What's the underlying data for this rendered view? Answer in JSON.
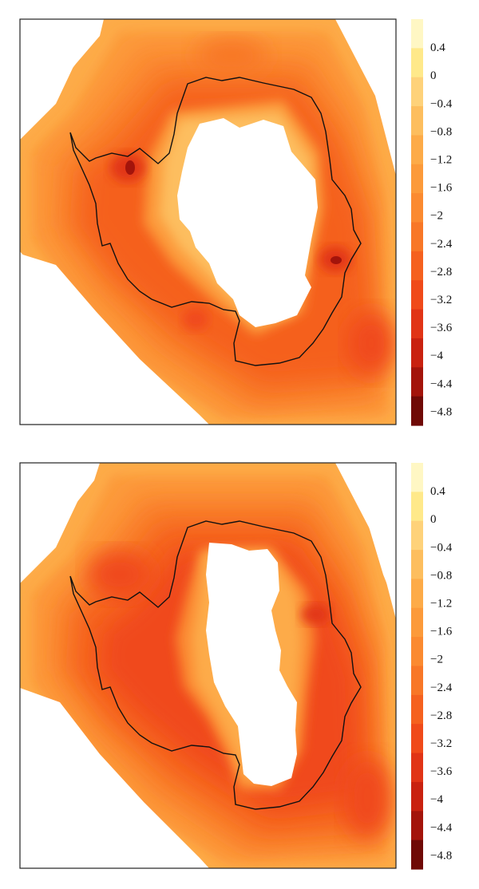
{
  "chart_data": [
    {
      "type": "heatmap",
      "panel": "top",
      "colorbar": {
        "ticks": [
          "0.4",
          "0",
          "−0.4",
          "−0.8",
          "−1.2",
          "−1.6",
          "−2",
          "−2.4",
          "−2.8",
          "−3.2",
          "−3.6",
          "−4",
          "−4.4",
          "−4.8"
        ],
        "range": [
          -5.0,
          0.8
        ],
        "step": 0.4
      },
      "field": {
        "hole_value": null,
        "ring_inner_level": -1.2,
        "ring_outer_level": -3.2,
        "local_minimum": -4.4,
        "outline": "black coastline"
      }
    },
    {
      "type": "heatmap",
      "panel": "bottom",
      "colorbar": {
        "ticks": [
          "0.4",
          "0",
          "−0.4",
          "−0.8",
          "−1.2",
          "−1.6",
          "−2",
          "−2.4",
          "−2.8",
          "−3.2",
          "−3.6",
          "−4",
          "−4.4",
          "−4.8"
        ],
        "range": [
          -5.0,
          0.8
        ],
        "step": 0.4
      },
      "field": {
        "hole_value": null,
        "ring_inner_level": -1.6,
        "ring_outer_level": -3.6,
        "local_minimum": -3.6,
        "outline": "black coastline"
      }
    }
  ],
  "colors": {
    "levels": [
      "#fff7c4",
      "#ffe98a",
      "#fed27a",
      "#fdbe5e",
      "#fdab48",
      "#fc9a3a",
      "#fb8a30",
      "#f87727",
      "#f5611f",
      "#f04a1a",
      "#e13416",
      "#c92210",
      "#a3140b",
      "#6f0a06",
      "#2a0503"
    ],
    "coastline": "#111111",
    "frame": "#222222"
  }
}
